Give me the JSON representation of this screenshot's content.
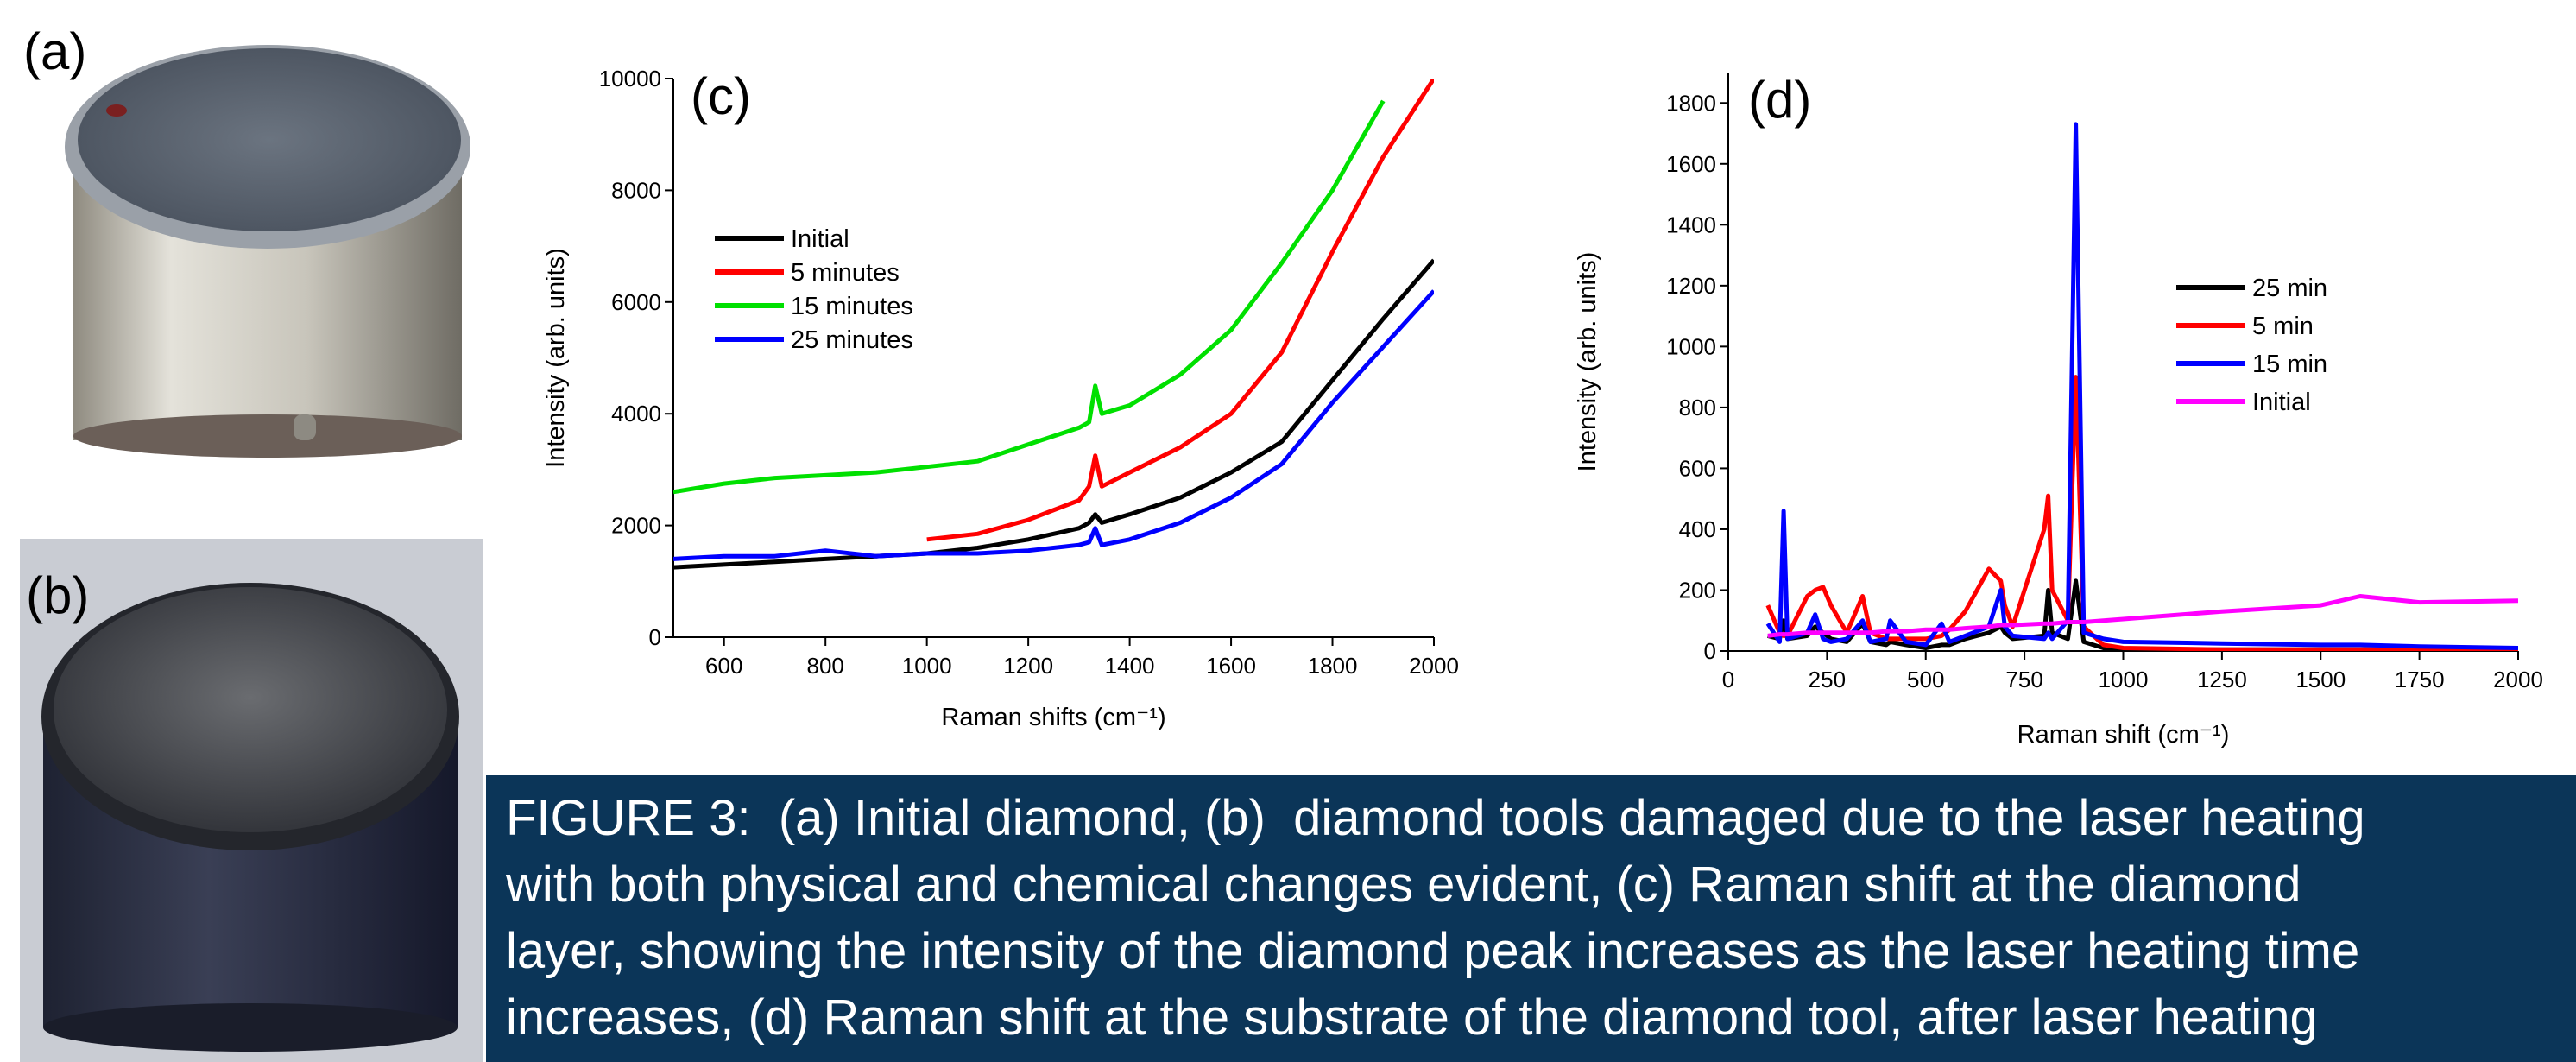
{
  "panels": {
    "a": "(a)",
    "b": "(b)"
  },
  "chart_data": [
    {
      "type": "line",
      "annotation": "(c)",
      "xlabel": "Raman shifts (cm⁻¹)",
      "ylabel": "Intensity (arb. units)",
      "x": [
        500,
        600,
        700,
        800,
        900,
        1000,
        1100,
        1200,
        1300,
        1320,
        1332,
        1345,
        1400,
        1500,
        1600,
        1700,
        1800,
        1900,
        2000
      ],
      "series": [
        {
          "name": "Initial",
          "color": "#000000",
          "values": [
            1250,
            1300,
            1350,
            1400,
            1450,
            1500,
            1600,
            1750,
            1950,
            2050,
            2200,
            2050,
            2200,
            2500,
            2950,
            3500,
            4600,
            5700,
            6750
          ]
        },
        {
          "name": "5 minutes",
          "color": "#ff0000",
          "values": [
            null,
            null,
            null,
            null,
            null,
            1750,
            1850,
            2100,
            2450,
            2700,
            3250,
            2700,
            2950,
            3400,
            4000,
            5100,
            6900,
            8600,
            10000
          ]
        },
        {
          "name": "15 minutes",
          "color": "#00e000",
          "values": [
            2600,
            2750,
            2850,
            2900,
            2950,
            3050,
            3150,
            3450,
            3750,
            3850,
            4500,
            4000,
            4150,
            4700,
            5500,
            6700,
            8000,
            9600,
            null
          ]
        },
        {
          "name": "25 minutes",
          "color": "#0000ff",
          "values": [
            1400,
            1450,
            1450,
            1550,
            1450,
            1500,
            1500,
            1550,
            1650,
            1700,
            1950,
            1650,
            1750,
            2050,
            2500,
            3100,
            4200,
            5200,
            6200
          ]
        }
      ],
      "xlim": [
        500,
        2000
      ],
      "xticks": [
        600,
        800,
        1000,
        1200,
        1400,
        1600,
        1800,
        2000
      ],
      "ylim": [
        0,
        10000
      ],
      "yticks": [
        0,
        2000,
        4000,
        6000,
        8000,
        10000
      ],
      "legend": "upper-left"
    },
    {
      "type": "line",
      "annotation": "(d)",
      "xlabel": "Raman shift (cm⁻¹)",
      "ylabel": "Intensity (arb. units)",
      "x": [
        100,
        130,
        140,
        150,
        200,
        220,
        240,
        260,
        300,
        340,
        360,
        400,
        410,
        450,
        500,
        540,
        560,
        600,
        660,
        690,
        700,
        720,
        800,
        810,
        820,
        860,
        880,
        900,
        950,
        1000,
        1250,
        1500,
        1600,
        1750,
        2000
      ],
      "series": [
        {
          "name": "25 min",
          "color": "#000000",
          "values": [
            50,
            40,
            100,
            40,
            50,
            80,
            60,
            40,
            30,
            90,
            30,
            20,
            30,
            20,
            10,
            20,
            20,
            40,
            60,
            80,
            60,
            40,
            50,
            200,
            60,
            40,
            230,
            30,
            10,
            5,
            5,
            5,
            5,
            5,
            5
          ]
        },
        {
          "name": "5 min",
          "color": "#ff0000",
          "values": [
            150,
            60,
            50,
            50,
            180,
            200,
            210,
            150,
            60,
            180,
            60,
            40,
            40,
            40,
            40,
            50,
            70,
            130,
            270,
            230,
            150,
            80,
            400,
            510,
            200,
            100,
            900,
            80,
            20,
            10,
            5,
            5,
            5,
            5,
            5
          ]
        },
        {
          "name": "15 min",
          "color": "#0000ff",
          "values": [
            90,
            30,
            460,
            40,
            60,
            120,
            40,
            30,
            40,
            100,
            30,
            40,
            100,
            30,
            20,
            90,
            30,
            50,
            80,
            200,
            80,
            50,
            40,
            60,
            40,
            100,
            1730,
            60,
            40,
            30,
            25,
            20,
            20,
            15,
            10
          ]
        },
        {
          "name": "Initial",
          "color": "#ff00ff",
          "values": [
            50,
            55,
            55,
            55,
            60,
            60,
            60,
            60,
            60,
            60,
            60,
            65,
            65,
            65,
            70,
            70,
            70,
            75,
            80,
            85,
            85,
            85,
            90,
            90,
            90,
            95,
            95,
            95,
            100,
            105,
            130,
            150,
            180,
            160,
            165
          ]
        }
      ],
      "xlim": [
        0,
        2000
      ],
      "xticks": [
        0,
        250,
        500,
        750,
        1000,
        1250,
        1500,
        1750,
        2000
      ],
      "ylim": [
        0,
        1900
      ],
      "yticks": [
        0,
        200,
        400,
        600,
        800,
        1000,
        1200,
        1400,
        1600,
        1800
      ],
      "legend": "right"
    }
  ],
  "caption": {
    "lines": [
      "FIGURE 3:  (a) Initial diamond, (b)  diamond tools damaged due to the laser heating",
      "with both physical and chemical changes evident, (c) Raman shift at the diamond",
      "layer, showing the intensity of the diamond peak increases as the laser heating time",
      "increases, (d) Raman shift at the substrate of the diamond tool, after laser heating"
    ]
  }
}
